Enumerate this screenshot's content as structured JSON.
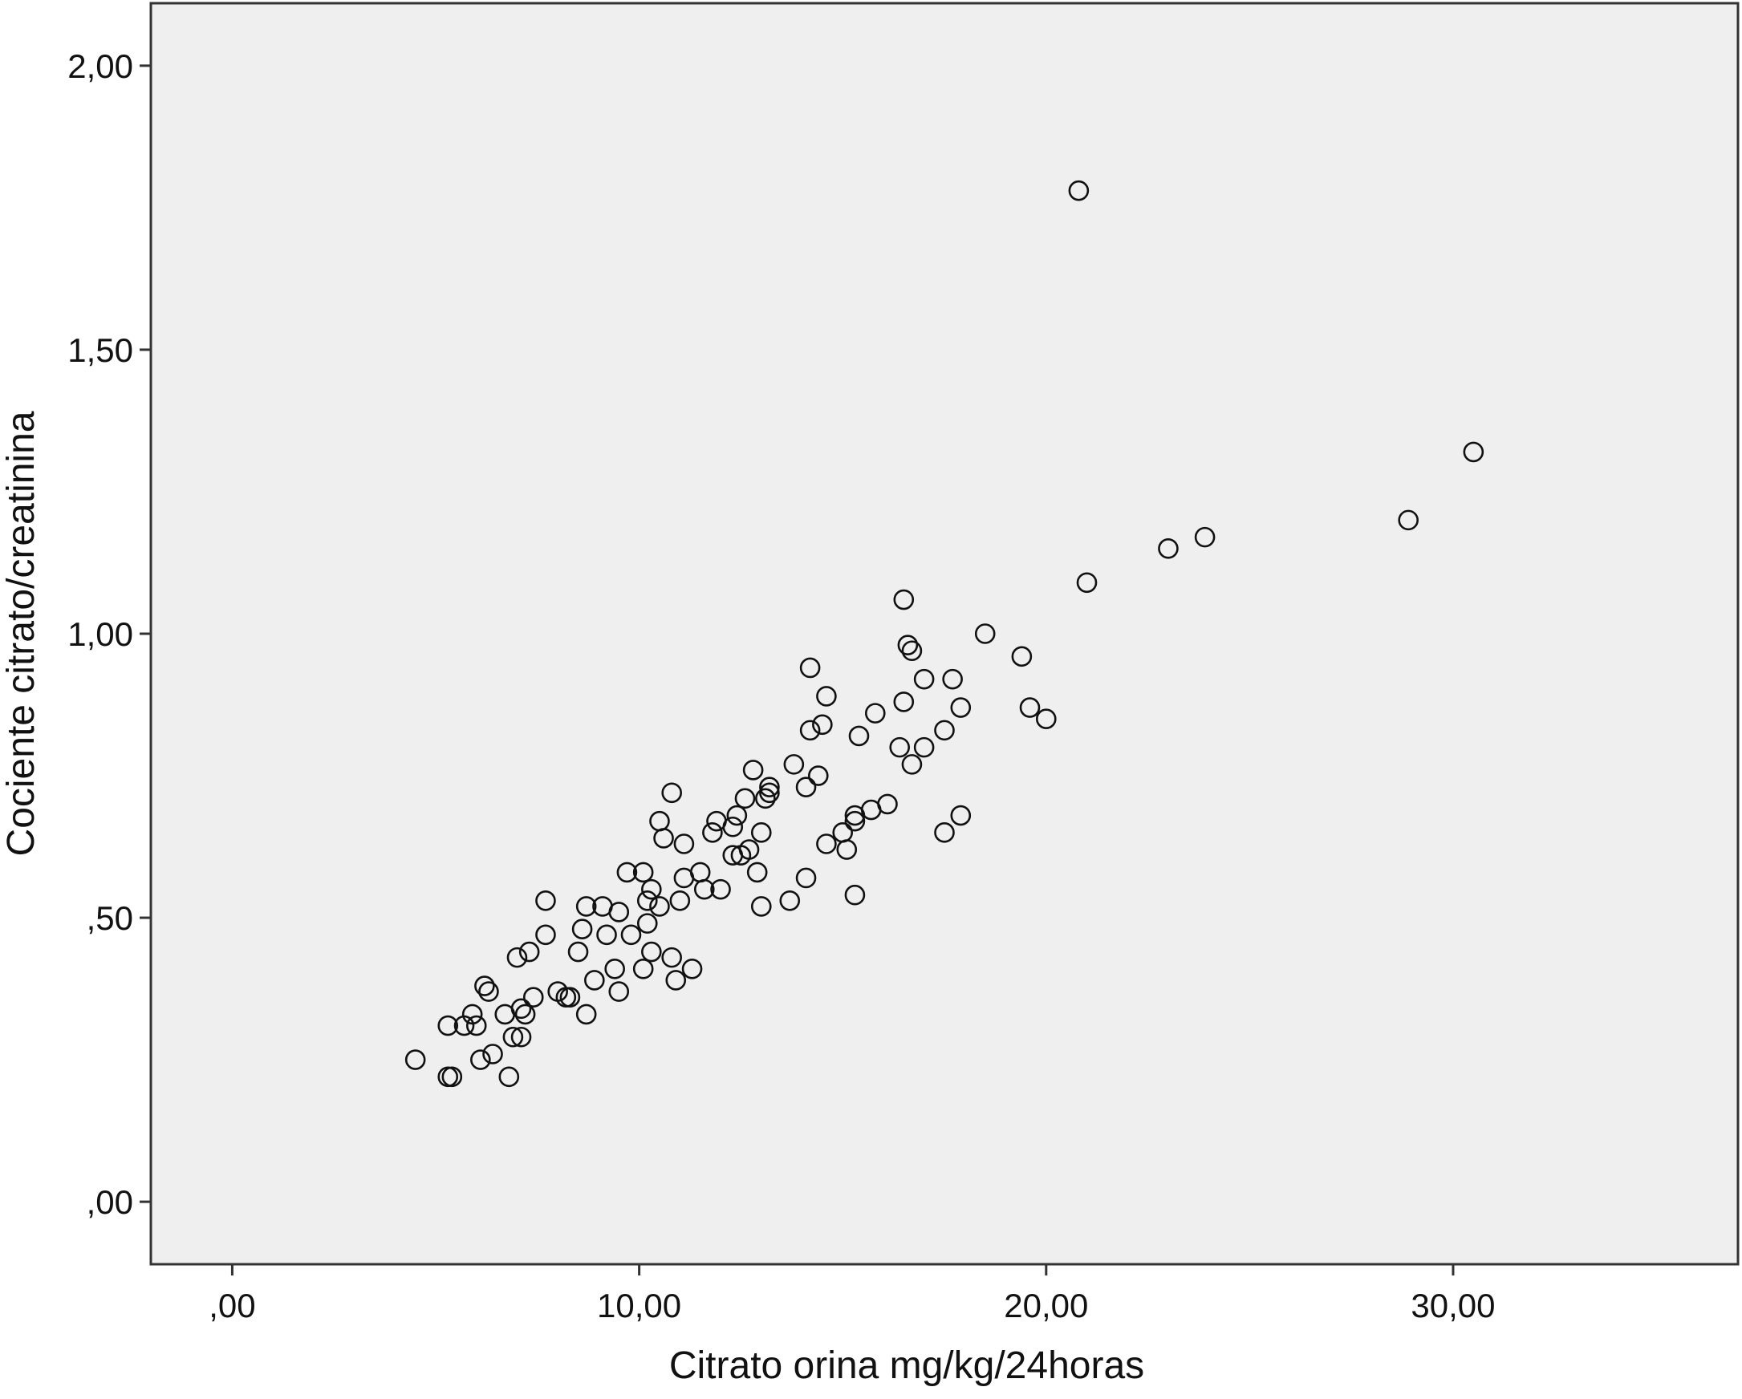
{
  "chart_data": {
    "type": "scatter",
    "xlabel": "Citrato orina mg/kg/24horas",
    "ylabel": "Cociente citrato/creatinina",
    "xlim": [
      -2,
      37
    ],
    "ylim": [
      -0.11,
      2.11
    ],
    "x_ticks": [
      0,
      10,
      20,
      30
    ],
    "x_tick_labels": [
      ",00",
      "10,00",
      "20,00",
      "30,00"
    ],
    "y_ticks": [
      0,
      0.5,
      1.0,
      1.5,
      2.0
    ],
    "y_tick_labels": [
      ",00",
      ",50",
      "1,00",
      "1,50",
      "2,00"
    ],
    "grid": false,
    "legend": "none",
    "colors": {
      "plot_background": "#efefef",
      "marker_edge": "#111111",
      "frame": "#333333"
    },
    "points": [
      [
        4.5,
        0.25
      ],
      [
        5.3,
        0.22
      ],
      [
        5.4,
        0.22
      ],
      [
        5.3,
        0.31
      ],
      [
        5.7,
        0.31
      ],
      [
        5.9,
        0.33
      ],
      [
        6.0,
        0.31
      ],
      [
        6.1,
        0.25
      ],
      [
        6.2,
        0.38
      ],
      [
        6.3,
        0.37
      ],
      [
        6.4,
        0.26
      ],
      [
        6.7,
        0.33
      ],
      [
        6.8,
        0.22
      ],
      [
        6.9,
        0.29
      ],
      [
        7.0,
        0.43
      ],
      [
        7.1,
        0.29
      ],
      [
        7.1,
        0.34
      ],
      [
        7.2,
        0.33
      ],
      [
        7.3,
        0.44
      ],
      [
        7.4,
        0.36
      ],
      [
        7.7,
        0.47
      ],
      [
        7.7,
        0.53
      ],
      [
        8.0,
        0.37
      ],
      [
        8.2,
        0.36
      ],
      [
        8.3,
        0.36
      ],
      [
        8.5,
        0.44
      ],
      [
        8.6,
        0.48
      ],
      [
        8.7,
        0.33
      ],
      [
        8.7,
        0.52
      ],
      [
        8.9,
        0.39
      ],
      [
        9.1,
        0.52
      ],
      [
        9.2,
        0.47
      ],
      [
        9.4,
        0.41
      ],
      [
        9.5,
        0.37
      ],
      [
        9.5,
        0.51
      ],
      [
        9.7,
        0.58
      ],
      [
        9.8,
        0.47
      ],
      [
        10.1,
        0.58
      ],
      [
        10.1,
        0.41
      ],
      [
        10.2,
        0.49
      ],
      [
        10.2,
        0.53
      ],
      [
        10.3,
        0.55
      ],
      [
        10.3,
        0.44
      ],
      [
        10.5,
        0.52
      ],
      [
        10.5,
        0.67
      ],
      [
        10.6,
        0.64
      ],
      [
        10.8,
        0.43
      ],
      [
        10.8,
        0.72
      ],
      [
        10.9,
        0.39
      ],
      [
        11.0,
        0.53
      ],
      [
        11.1,
        0.57
      ],
      [
        11.1,
        0.63
      ],
      [
        11.3,
        0.41
      ],
      [
        11.5,
        0.58
      ],
      [
        11.6,
        0.55
      ],
      [
        11.8,
        0.65
      ],
      [
        11.9,
        0.67
      ],
      [
        12.0,
        0.55
      ],
      [
        12.3,
        0.61
      ],
      [
        12.3,
        0.66
      ],
      [
        12.4,
        0.68
      ],
      [
        12.5,
        0.61
      ],
      [
        12.6,
        0.71
      ],
      [
        12.7,
        0.62
      ],
      [
        12.8,
        0.76
      ],
      [
        12.9,
        0.58
      ],
      [
        13.0,
        0.52
      ],
      [
        13.0,
        0.65
      ],
      [
        13.1,
        0.71
      ],
      [
        13.2,
        0.72
      ],
      [
        13.2,
        0.73
      ],
      [
        13.7,
        0.53
      ],
      [
        13.8,
        0.77
      ],
      [
        14.1,
        0.57
      ],
      [
        14.1,
        0.73
      ],
      [
        14.2,
        0.83
      ],
      [
        14.2,
        0.94
      ],
      [
        14.4,
        0.75
      ],
      [
        14.5,
        0.84
      ],
      [
        14.6,
        0.89
      ],
      [
        14.6,
        0.63
      ],
      [
        15.0,
        0.65
      ],
      [
        15.1,
        0.62
      ],
      [
        15.3,
        0.67
      ],
      [
        15.3,
        0.68
      ],
      [
        15.3,
        0.54
      ],
      [
        15.4,
        0.82
      ],
      [
        15.7,
        0.69
      ],
      [
        15.8,
        0.86
      ],
      [
        16.1,
        0.7
      ],
      [
        16.4,
        0.8
      ],
      [
        16.5,
        1.06
      ],
      [
        16.5,
        0.88
      ],
      [
        16.6,
        0.98
      ],
      [
        16.7,
        0.77
      ],
      [
        16.7,
        0.97
      ],
      [
        17.0,
        0.8
      ],
      [
        17.0,
        0.92
      ],
      [
        17.5,
        0.65
      ],
      [
        17.5,
        0.83
      ],
      [
        17.7,
        0.92
      ],
      [
        17.9,
        0.87
      ],
      [
        17.9,
        0.68
      ],
      [
        18.5,
        1.0
      ],
      [
        19.4,
        0.96
      ],
      [
        19.6,
        0.87
      ],
      [
        20.0,
        0.85
      ],
      [
        20.8,
        1.78
      ],
      [
        21.0,
        1.09
      ],
      [
        23.0,
        1.15
      ],
      [
        23.9,
        1.17
      ],
      [
        28.9,
        1.2
      ],
      [
        30.5,
        1.32
      ]
    ]
  }
}
